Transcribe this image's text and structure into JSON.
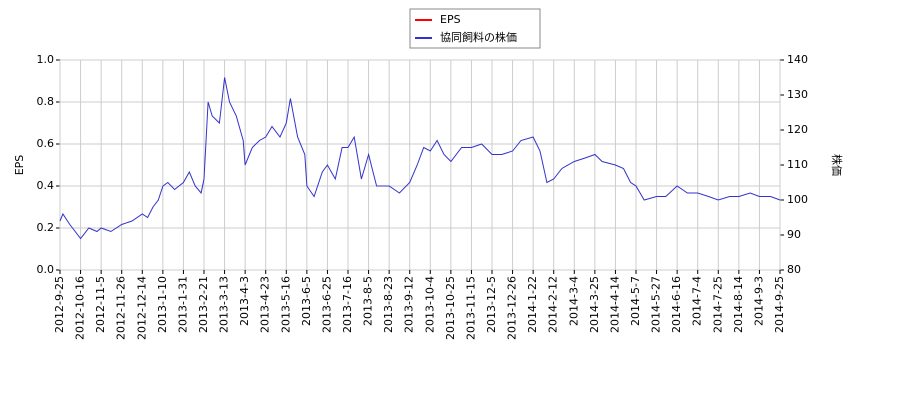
{
  "chart_data": {
    "type": "line",
    "x": [
      "2012-9-25",
      "2012-9-28",
      "2012-10-5",
      "2012-10-16",
      "2012-10-24",
      "2012-11-1",
      "2012-11-5",
      "2012-11-15",
      "2012-11-26",
      "2012-12-5",
      "2012-12-14",
      "2012-12-21",
      "2012-12-28",
      "2013-1-4",
      "2013-1-10",
      "2013-1-15",
      "2013-1-22",
      "2013-1-31",
      "2013-2-6",
      "2013-2-12",
      "2013-2-18",
      "2013-2-21",
      "2013-2-25",
      "2013-3-1",
      "2013-3-8",
      "2013-3-13",
      "2013-3-18",
      "2013-3-25",
      "2013-4-1",
      "2013-4-3",
      "2013-4-10",
      "2013-4-17",
      "2013-4-23",
      "2013-4-30",
      "2013-5-9",
      "2013-5-16",
      "2013-5-20",
      "2013-5-27",
      "2013-6-3",
      "2013-6-5",
      "2013-6-12",
      "2013-6-20",
      "2013-6-25",
      "2013-7-3",
      "2013-7-10",
      "2013-7-16",
      "2013-7-22",
      "2013-7-29",
      "2013-8-5",
      "2013-8-12",
      "2013-8-23",
      "2013-9-2",
      "2013-9-12",
      "2013-9-20",
      "2013-9-27",
      "2013-10-4",
      "2013-10-11",
      "2013-10-18",
      "2013-10-25",
      "2013-11-5",
      "2013-11-15",
      "2013-11-25",
      "2013-12-5",
      "2013-12-15",
      "2013-12-26",
      "2014-1-6",
      "2014-1-22",
      "2014-1-29",
      "2014-2-5",
      "2014-2-12",
      "2014-2-20",
      "2014-3-4",
      "2014-3-15",
      "2014-3-25",
      "2014-4-1",
      "2014-4-14",
      "2014-4-23",
      "2014-5-1",
      "2014-5-7",
      "2014-5-15",
      "2014-5-27",
      "2014-6-5",
      "2014-6-16",
      "2014-6-25",
      "2014-7-4",
      "2014-7-15",
      "2014-7-25",
      "2014-8-5",
      "2014-8-14",
      "2014-8-25",
      "2014-9-3",
      "2014-9-15",
      "2014-9-25"
    ],
    "series": [
      {
        "name": "EPS",
        "color": "#ff0000",
        "axis": "y",
        "values": [
          null,
          null,
          null,
          null,
          null,
          null,
          null,
          null,
          null,
          null,
          null,
          null,
          null,
          null,
          null,
          null,
          null,
          null,
          null,
          null,
          null,
          null,
          null,
          null,
          null,
          null,
          null,
          null,
          null,
          null,
          null,
          null,
          null,
          null,
          null,
          null,
          null,
          null,
          null,
          null,
          null,
          null,
          null,
          null,
          null,
          null,
          null,
          null,
          null,
          null,
          null,
          null,
          null,
          null,
          null,
          null,
          null,
          null,
          null,
          null,
          null,
          null,
          null,
          null,
          null,
          null,
          null,
          null,
          null,
          null,
          null,
          null,
          null,
          null,
          null,
          null,
          null,
          null,
          null,
          null,
          null,
          null,
          null,
          null,
          null,
          null,
          null,
          null,
          null,
          null,
          null,
          null,
          null
        ]
      },
      {
        "name": "協同飼料の株価",
        "color": "#3333cc",
        "axis": "y2",
        "values": [
          94,
          96,
          93,
          89,
          92,
          91,
          92,
          91,
          93,
          94,
          96,
          95,
          98,
          100,
          104,
          105,
          103,
          105,
          108,
          104,
          102,
          106,
          128,
          124,
          122,
          135,
          128,
          124,
          117,
          110,
          115,
          117,
          118,
          121,
          118,
          122,
          129,
          118,
          113,
          104,
          101,
          108,
          110,
          106,
          115,
          115,
          118,
          106,
          113,
          104,
          104,
          102,
          105,
          110,
          115,
          114,
          117,
          113,
          111,
          115,
          115,
          116,
          113,
          113,
          114,
          117,
          118,
          114,
          105,
          106,
          109,
          111,
          112,
          113,
          111,
          110,
          109,
          105,
          104,
          100,
          101,
          101,
          104,
          102,
          102,
          101,
          100,
          101,
          101,
          102,
          101,
          101,
          100
        ]
      }
    ],
    "xticks": [
      "2012-9-25",
      "2012-10-16",
      "2012-11-5",
      "2012-11-26",
      "2012-12-14",
      "2013-1-10",
      "2013-1-31",
      "2013-2-21",
      "2013-3-13",
      "2013-4-3",
      "2013-4-23",
      "2013-5-16",
      "2013-6-5",
      "2013-6-25",
      "2013-7-16",
      "2013-8-5",
      "2013-8-23",
      "2013-9-12",
      "2013-10-4",
      "2013-10-25",
      "2013-11-15",
      "2013-12-5",
      "2013-12-26",
      "2014-1-22",
      "2014-2-12",
      "2014-3-4",
      "2014-3-25",
      "2014-4-14",
      "2014-5-7",
      "2014-5-27",
      "2014-6-16",
      "2014-7-4",
      "2014-7-25",
      "2014-8-14",
      "2014-9-3",
      "2014-9-25"
    ],
    "ylabel": "EPS",
    "y2label": "株価",
    "ylim": [
      0,
      1
    ],
    "yticks": [
      {
        "value": 0,
        "label": "0.0"
      },
      {
        "value": 0.2,
        "label": "0.2"
      },
      {
        "value": 0.4,
        "label": "0.4"
      },
      {
        "value": 0.6,
        "label": "0.6"
      },
      {
        "value": 0.8,
        "label": "0.8"
      },
      {
        "value": 1,
        "label": "1.0"
      }
    ],
    "y2lim": [
      80,
      140
    ],
    "y2ticks": [
      80,
      90,
      100,
      110,
      120,
      130,
      140
    ],
    "grid": true,
    "legend": "top"
  }
}
